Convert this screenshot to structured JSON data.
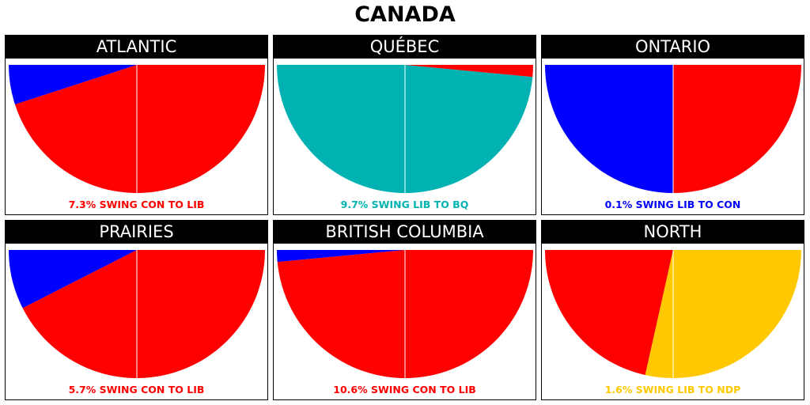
{
  "title": "CANADA",
  "chart_data": [
    {
      "type": "pie",
      "title": "ATLANTIC",
      "caption": "7.3% SWING CON TO LIB",
      "caption_color": "#ff0000",
      "slices": [
        {
          "party": "CON",
          "color": "#0000ff",
          "value": 10
        },
        {
          "party": "LIB",
          "color": "#ff0000",
          "value": 90
        }
      ]
    },
    {
      "type": "pie",
      "title": "QUÉBEC",
      "caption": "9.7% SWING LIB TO BQ",
      "caption_color": "#00b2b2",
      "slices": [
        {
          "party": "BQ",
          "color": "#00b2b2",
          "value": 97
        },
        {
          "party": "LIB",
          "color": "#ff0000",
          "value": 3
        }
      ]
    },
    {
      "type": "pie",
      "title": "ONTARIO",
      "caption": "0.1% SWING LIB TO CON",
      "caption_color": "#0000ff",
      "slices": [
        {
          "party": "CON",
          "color": "#0000ff",
          "value": 50
        },
        {
          "party": "LIB",
          "color": "#ff0000",
          "value": 50
        }
      ]
    },
    {
      "type": "pie",
      "title": "PRAIRIES",
      "caption": "5.7% SWING CON TO LIB",
      "caption_color": "#ff0000",
      "slices": [
        {
          "party": "CON",
          "color": "#0000ff",
          "value": 15
        },
        {
          "party": "LIB",
          "color": "#ff0000",
          "value": 85
        }
      ]
    },
    {
      "type": "pie",
      "title": "BRITISH COLUMBIA",
      "caption": "10.6% SWING CON TO LIB",
      "caption_color": "#ff0000",
      "slices": [
        {
          "party": "CON",
          "color": "#0000ff",
          "value": 3
        },
        {
          "party": "LIB",
          "color": "#ff0000",
          "value": 97
        }
      ]
    },
    {
      "type": "pie",
      "title": "NORTH",
      "caption": "1.6% SWING LIB TO NDP",
      "caption_color": "#ffc800",
      "slices": [
        {
          "party": "LIB",
          "color": "#ff0000",
          "value": 43
        },
        {
          "party": "NDP",
          "color": "#ffc800",
          "value": 57
        }
      ]
    }
  ]
}
